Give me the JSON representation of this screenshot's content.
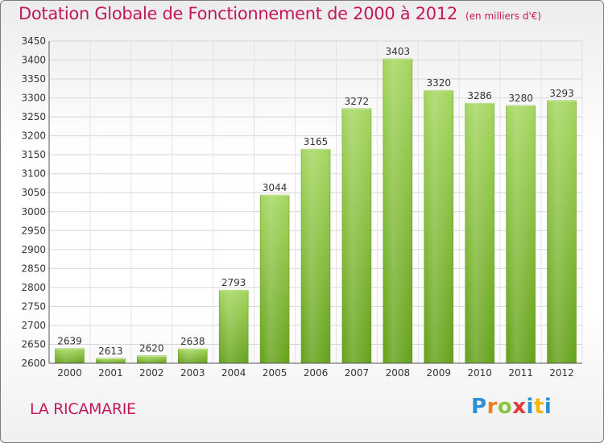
{
  "header": {
    "title": "Dotation Globale de Fonctionnement de 2000 à 2012",
    "subtitle": "(en milliers d'€)"
  },
  "commune": "LA RICAMARIE",
  "logo": {
    "letters": [
      "P",
      "r",
      "o",
      "x",
      "i",
      "t",
      "i"
    ],
    "colors": [
      "#2f8fd6",
      "#f07c1e",
      "#8cc63f",
      "#e53935",
      "#2f8fd6",
      "#f4b400",
      "#2f8fd6"
    ]
  },
  "chart_data": {
    "type": "bar",
    "title": "Dotation Globale de Fonctionnement de 2000 à 2012",
    "subtitle": "(en milliers d'€)",
    "categories": [
      "2000",
      "2001",
      "2002",
      "2003",
      "2004",
      "2005",
      "2006",
      "2007",
      "2008",
      "2009",
      "2010",
      "2011",
      "2012"
    ],
    "values": [
      2639,
      2613,
      2620,
      2638,
      2793,
      3044,
      3165,
      3272,
      3403,
      3320,
      3286,
      3280,
      3293
    ],
    "ylim": [
      2600,
      3450
    ],
    "yticks": [
      2600,
      2650,
      2700,
      2750,
      2800,
      2850,
      2900,
      2950,
      3000,
      3050,
      3100,
      3150,
      3200,
      3250,
      3300,
      3350,
      3400,
      3450
    ],
    "xlabel": "",
    "ylabel": "",
    "grid": true,
    "bar_color": "#8cc63f"
  }
}
